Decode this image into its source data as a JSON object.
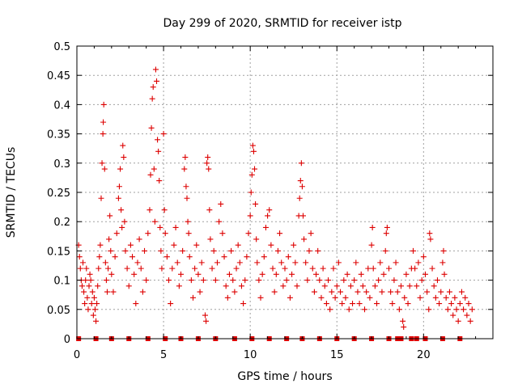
{
  "chart_data": {
    "type": "scatter",
    "title": "Day 299 of 2020, SRMTID for receiver istp",
    "xlabel": "GPS time / hours",
    "ylabel": "SRMTID / TECUs",
    "xlim": [
      0,
      24
    ],
    "ylim": [
      0,
      0.5
    ],
    "grid": true,
    "marker": "+",
    "color": "#dd0000",
    "x_ticks": [
      {
        "value": 0,
        "label": "0"
      },
      {
        "value": 5,
        "label": "5"
      },
      {
        "value": 10,
        "label": "10"
      },
      {
        "value": 15,
        "label": "15"
      },
      {
        "value": 20,
        "label": "20"
      }
    ],
    "y_ticks": [
      {
        "value": 0,
        "label": "0"
      },
      {
        "value": 0.05,
        "label": "0.05"
      },
      {
        "value": 0.1,
        "label": "0.1"
      },
      {
        "value": 0.15,
        "label": "0.15"
      },
      {
        "value": 0.2,
        "label": "0.2"
      },
      {
        "value": 0.25,
        "label": "0.25"
      },
      {
        "value": 0.3,
        "label": "0.3"
      },
      {
        "value": 0.35,
        "label": "0.35"
      },
      {
        "value": 0.4,
        "label": "0.4"
      },
      {
        "value": 0.45,
        "label": "0.45"
      },
      {
        "value": 0.5,
        "label": "0.5"
      }
    ],
    "zero_markers_x": [
      0.1,
      1.1,
      2.0,
      3.0,
      4.1,
      5.1,
      6.0,
      7.0,
      8.0,
      9.1,
      10.1,
      11.1,
      12.1,
      13.0,
      14.0,
      15.0,
      16.0,
      17.0,
      18.0,
      18.5,
      18.7,
      19.3,
      19.6,
      20.1,
      21.1,
      22.1
    ],
    "series": [
      {
        "name": "SRMTID",
        "points": [
          [
            0.1,
            0.16
          ],
          [
            0.15,
            0.14
          ],
          [
            0.2,
            0.12
          ],
          [
            0.25,
            0.1
          ],
          [
            0.3,
            0.09
          ],
          [
            0.35,
            0.13
          ],
          [
            0.4,
            0.08
          ],
          [
            0.45,
            0.06
          ],
          [
            0.5,
            0.1
          ],
          [
            0.55,
            0.12
          ],
          [
            0.6,
            0.07
          ],
          [
            0.65,
            0.05
          ],
          [
            0.7,
            0.09
          ],
          [
            0.75,
            0.11
          ],
          [
            0.8,
            0.1
          ],
          [
            0.85,
            0.06
          ],
          [
            0.9,
            0.08
          ],
          [
            0.95,
            0.04
          ],
          [
            1.0,
            0.07
          ],
          [
            1.05,
            0.05
          ],
          [
            1.1,
            0.03
          ],
          [
            1.15,
            0.06
          ],
          [
            1.2,
            0.09
          ],
          [
            1.25,
            0.12
          ],
          [
            1.3,
            0.14
          ],
          [
            1.35,
            0.16
          ],
          [
            1.4,
            0.24
          ],
          [
            1.45,
            0.3
          ],
          [
            1.5,
            0.35
          ],
          [
            1.52,
            0.37
          ],
          [
            1.55,
            0.4
          ],
          [
            1.6,
            0.29
          ],
          [
            1.65,
            0.13
          ],
          [
            1.7,
            0.1
          ],
          [
            1.75,
            0.08
          ],
          [
            1.8,
            0.12
          ],
          [
            1.85,
            0.17
          ],
          [
            1.9,
            0.21
          ],
          [
            1.95,
            0.15
          ],
          [
            2.0,
            0.11
          ],
          [
            2.1,
            0.08
          ],
          [
            2.2,
            0.14
          ],
          [
            2.3,
            0.18
          ],
          [
            2.4,
            0.24
          ],
          [
            2.45,
            0.26
          ],
          [
            2.5,
            0.29
          ],
          [
            2.55,
            0.22
          ],
          [
            2.6,
            0.19
          ],
          [
            2.65,
            0.33
          ],
          [
            2.7,
            0.31
          ],
          [
            2.75,
            0.2
          ],
          [
            2.8,
            0.15
          ],
          [
            2.9,
            0.12
          ],
          [
            3.0,
            0.09
          ],
          [
            3.1,
            0.16
          ],
          [
            3.2,
            0.14
          ],
          [
            3.3,
            0.11
          ],
          [
            3.4,
            0.06
          ],
          [
            3.5,
            0.13
          ],
          [
            3.6,
            0.17
          ],
          [
            3.7,
            0.12
          ],
          [
            3.8,
            0.08
          ],
          [
            3.9,
            0.15
          ],
          [
            4.0,
            0.1
          ],
          [
            4.1,
            0.18
          ],
          [
            4.2,
            0.22
          ],
          [
            4.25,
            0.28
          ],
          [
            4.3,
            0.36
          ],
          [
            4.35,
            0.41
          ],
          [
            4.4,
            0.43
          ],
          [
            4.45,
            0.29
          ],
          [
            4.5,
            0.2
          ],
          [
            4.55,
            0.46
          ],
          [
            4.6,
            0.44
          ],
          [
            4.65,
            0.34
          ],
          [
            4.7,
            0.32
          ],
          [
            4.75,
            0.27
          ],
          [
            4.8,
            0.19
          ],
          [
            4.85,
            0.15
          ],
          [
            4.9,
            0.12
          ],
          [
            5.0,
            0.35
          ],
          [
            5.05,
            0.22
          ],
          [
            5.1,
            0.18
          ],
          [
            5.2,
            0.14
          ],
          [
            5.3,
            0.1
          ],
          [
            5.4,
            0.06
          ],
          [
            5.5,
            0.12
          ],
          [
            5.6,
            0.16
          ],
          [
            5.7,
            0.19
          ],
          [
            5.8,
            0.13
          ],
          [
            5.9,
            0.09
          ],
          [
            6.0,
            0.11
          ],
          [
            6.1,
            0.15
          ],
          [
            6.2,
            0.29
          ],
          [
            6.25,
            0.31
          ],
          [
            6.3,
            0.26
          ],
          [
            6.35,
            0.24
          ],
          [
            6.4,
            0.2
          ],
          [
            6.45,
            0.18
          ],
          [
            6.5,
            0.14
          ],
          [
            6.6,
            0.1
          ],
          [
            6.7,
            0.07
          ],
          [
            6.8,
            0.12
          ],
          [
            6.9,
            0.16
          ],
          [
            7.0,
            0.11
          ],
          [
            7.1,
            0.08
          ],
          [
            7.2,
            0.13
          ],
          [
            7.3,
            0.1
          ],
          [
            7.4,
            0.04
          ],
          [
            7.45,
            0.03
          ],
          [
            7.5,
            0.3
          ],
          [
            7.55,
            0.31
          ],
          [
            7.6,
            0.29
          ],
          [
            7.65,
            0.22
          ],
          [
            7.7,
            0.17
          ],
          [
            7.8,
            0.12
          ],
          [
            7.9,
            0.15
          ],
          [
            8.0,
            0.1
          ],
          [
            8.1,
            0.13
          ],
          [
            8.2,
            0.2
          ],
          [
            8.3,
            0.23
          ],
          [
            8.4,
            0.18
          ],
          [
            8.5,
            0.14
          ],
          [
            8.6,
            0.09
          ],
          [
            8.7,
            0.07
          ],
          [
            8.8,
            0.11
          ],
          [
            8.9,
            0.15
          ],
          [
            9.0,
            0.1
          ],
          [
            9.1,
            0.08
          ],
          [
            9.2,
            0.12
          ],
          [
            9.3,
            0.16
          ],
          [
            9.4,
            0.13
          ],
          [
            9.5,
            0.09
          ],
          [
            9.6,
            0.06
          ],
          [
            9.7,
            0.1
          ],
          [
            9.8,
            0.14
          ],
          [
            9.9,
            0.18
          ],
          [
            10.0,
            0.21
          ],
          [
            10.05,
            0.25
          ],
          [
            10.1,
            0.28
          ],
          [
            10.15,
            0.33
          ],
          [
            10.2,
            0.32
          ],
          [
            10.25,
            0.29
          ],
          [
            10.3,
            0.23
          ],
          [
            10.35,
            0.17
          ],
          [
            10.4,
            0.13
          ],
          [
            10.5,
            0.1
          ],
          [
            10.6,
            0.07
          ],
          [
            10.7,
            0.11
          ],
          [
            10.8,
            0.14
          ],
          [
            10.9,
            0.19
          ],
          [
            11.0,
            0.21
          ],
          [
            11.1,
            0.22
          ],
          [
            11.2,
            0.16
          ],
          [
            11.3,
            0.12
          ],
          [
            11.4,
            0.08
          ],
          [
            11.5,
            0.11
          ],
          [
            11.6,
            0.15
          ],
          [
            11.7,
            0.18
          ],
          [
            11.8,
            0.13
          ],
          [
            11.9,
            0.09
          ],
          [
            12.0,
            0.12
          ],
          [
            12.1,
            0.1
          ],
          [
            12.2,
            0.14
          ],
          [
            12.3,
            0.07
          ],
          [
            12.4,
            0.11
          ],
          [
            12.5,
            0.16
          ],
          [
            12.6,
            0.13
          ],
          [
            12.7,
            0.09
          ],
          [
            12.8,
            0.21
          ],
          [
            12.85,
            0.24
          ],
          [
            12.9,
            0.27
          ],
          [
            12.95,
            0.3
          ],
          [
            13.0,
            0.26
          ],
          [
            13.05,
            0.21
          ],
          [
            13.1,
            0.17
          ],
          [
            13.2,
            0.13
          ],
          [
            13.3,
            0.1
          ],
          [
            13.4,
            0.15
          ],
          [
            13.5,
            0.18
          ],
          [
            13.6,
            0.12
          ],
          [
            13.7,
            0.08
          ],
          [
            13.8,
            0.11
          ],
          [
            13.9,
            0.15
          ],
          [
            14.0,
            0.1
          ],
          [
            14.1,
            0.07
          ],
          [
            14.2,
            0.12
          ],
          [
            14.3,
            0.09
          ],
          [
            14.4,
            0.06
          ],
          [
            14.5,
            0.1
          ],
          [
            14.6,
            0.05
          ],
          [
            14.7,
            0.08
          ],
          [
            14.8,
            0.12
          ],
          [
            14.9,
            0.07
          ],
          [
            15.0,
            0.09
          ],
          [
            15.1,
            0.13
          ],
          [
            15.2,
            0.08
          ],
          [
            15.3,
            0.06
          ],
          [
            15.4,
            0.1
          ],
          [
            15.5,
            0.07
          ],
          [
            15.6,
            0.11
          ],
          [
            15.7,
            0.05
          ],
          [
            15.8,
            0.09
          ],
          [
            15.9,
            0.06
          ],
          [
            16.0,
            0.1
          ],
          [
            16.1,
            0.13
          ],
          [
            16.2,
            0.08
          ],
          [
            16.3,
            0.06
          ],
          [
            16.4,
            0.11
          ],
          [
            16.5,
            0.09
          ],
          [
            16.6,
            0.05
          ],
          [
            16.7,
            0.08
          ],
          [
            16.8,
            0.12
          ],
          [
            16.9,
            0.07
          ],
          [
            17.0,
            0.16
          ],
          [
            17.05,
            0.19
          ],
          [
            17.1,
            0.12
          ],
          [
            17.2,
            0.09
          ],
          [
            17.3,
            0.06
          ],
          [
            17.4,
            0.1
          ],
          [
            17.5,
            0.13
          ],
          [
            17.6,
            0.08
          ],
          [
            17.7,
            0.11
          ],
          [
            17.8,
            0.15
          ],
          [
            17.85,
            0.18
          ],
          [
            17.9,
            0.19
          ],
          [
            18.0,
            0.12
          ],
          [
            18.1,
            0.08
          ],
          [
            18.2,
            0.06
          ],
          [
            18.3,
            0.1
          ],
          [
            18.4,
            0.13
          ],
          [
            18.5,
            0.08
          ],
          [
            18.6,
            0.05
          ],
          [
            18.7,
            0.09
          ],
          [
            18.8,
            0.03
          ],
          [
            18.85,
            0.02
          ],
          [
            18.9,
            0.07
          ],
          [
            19.0,
            0.11
          ],
          [
            19.1,
            0.06
          ],
          [
            19.2,
            0.09
          ],
          [
            19.3,
            0.12
          ],
          [
            19.4,
            0.15
          ],
          [
            19.5,
            0.12
          ],
          [
            19.6,
            0.09
          ],
          [
            19.7,
            0.13
          ],
          [
            19.8,
            0.07
          ],
          [
            19.9,
            0.1
          ],
          [
            20.0,
            0.14
          ],
          [
            20.1,
            0.11
          ],
          [
            20.2,
            0.08
          ],
          [
            20.3,
            0.05
          ],
          [
            20.35,
            0.18
          ],
          [
            20.4,
            0.17
          ],
          [
            20.5,
            0.12
          ],
          [
            20.6,
            0.09
          ],
          [
            20.7,
            0.07
          ],
          [
            20.8,
            0.1
          ],
          [
            20.9,
            0.06
          ],
          [
            21.0,
            0.08
          ],
          [
            21.1,
            0.13
          ],
          [
            21.15,
            0.15
          ],
          [
            21.2,
            0.11
          ],
          [
            21.3,
            0.07
          ],
          [
            21.4,
            0.05
          ],
          [
            21.5,
            0.08
          ],
          [
            21.6,
            0.06
          ],
          [
            21.7,
            0.04
          ],
          [
            21.8,
            0.07
          ],
          [
            21.9,
            0.05
          ],
          [
            22.0,
            0.03
          ],
          [
            22.1,
            0.06
          ],
          [
            22.2,
            0.08
          ],
          [
            22.3,
            0.05
          ],
          [
            22.4,
            0.07
          ],
          [
            22.5,
            0.04
          ],
          [
            22.6,
            0.06
          ],
          [
            22.7,
            0.03
          ],
          [
            22.8,
            0.05
          ]
        ]
      }
    ]
  }
}
